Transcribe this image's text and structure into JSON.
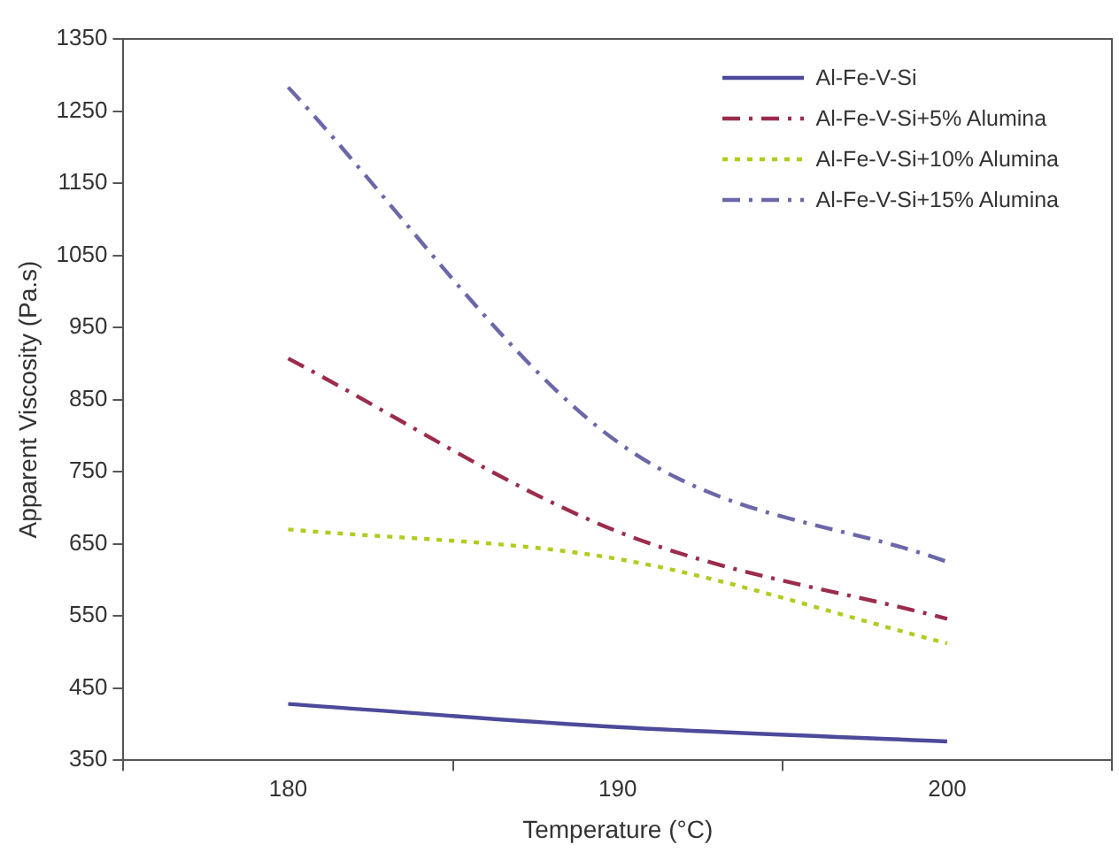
{
  "chart_data": {
    "type": "line",
    "xlabel": "Temperature (°C)",
    "ylabel": "Apparent Viscosity (Pa.s)",
    "categories": [
      "180",
      "190",
      "200"
    ],
    "series": [
      {
        "name": "Al-Fe-V-Si",
        "color": "#4c4a9a",
        "values": [
          428,
          396,
          376
        ],
        "line_style": "solid"
      },
      {
        "name": "Al-Fe-V-Si+5% Alumina",
        "color": "#9b2c4c",
        "values": [
          907,
          667,
          546
        ],
        "line_style": "dashed"
      },
      {
        "name": "Al-Fe-V-Si+10% Alumina",
        "color": "#b0cc20",
        "values": [
          670,
          629,
          512
        ],
        "line_style": "dotted"
      },
      {
        "name": "Al-Fe-V-Si+15% Alumina",
        "color": "#6a68a8",
        "values": [
          1283,
          791,
          625
        ],
        "line_style": "dashed"
      }
    ],
    "ylim": [
      350,
      1350
    ],
    "yticks": [
      350,
      450,
      550,
      650,
      750,
      850,
      950,
      1050,
      1150,
      1250,
      1350
    ],
    "grid": false,
    "legend": "top right",
    "marker": "none"
  }
}
